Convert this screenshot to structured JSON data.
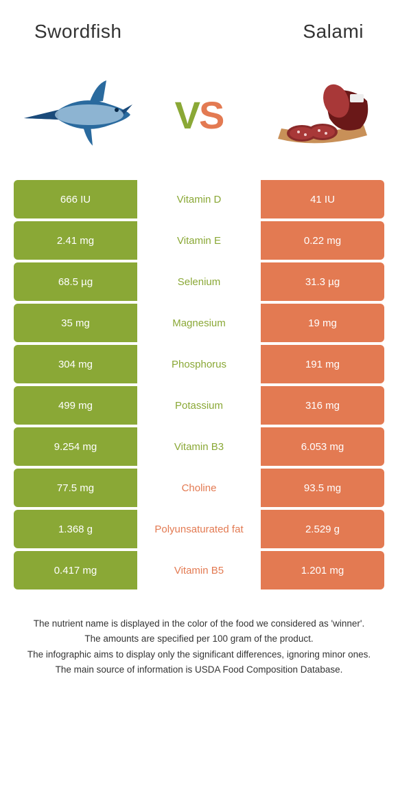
{
  "header": {
    "left_title": "Swordfish",
    "right_title": "Salami"
  },
  "vs": {
    "v": "V",
    "s": "S"
  },
  "colors": {
    "left_food": "#8aa836",
    "right_food": "#e37a52",
    "text_dark": "#333333"
  },
  "rows": [
    {
      "nutrient": "Vitamin D",
      "left": "666 IU",
      "right": "41 IU",
      "winner": "left"
    },
    {
      "nutrient": "Vitamin E",
      "left": "2.41 mg",
      "right": "0.22 mg",
      "winner": "left"
    },
    {
      "nutrient": "Selenium",
      "left": "68.5 µg",
      "right": "31.3 µg",
      "winner": "left"
    },
    {
      "nutrient": "Magnesium",
      "left": "35 mg",
      "right": "19 mg",
      "winner": "left"
    },
    {
      "nutrient": "Phosphorus",
      "left": "304 mg",
      "right": "191 mg",
      "winner": "left"
    },
    {
      "nutrient": "Potassium",
      "left": "499 mg",
      "right": "316 mg",
      "winner": "left"
    },
    {
      "nutrient": "Vitamin B3",
      "left": "9.254 mg",
      "right": "6.053 mg",
      "winner": "left"
    },
    {
      "nutrient": "Choline",
      "left": "77.5 mg",
      "right": "93.5 mg",
      "winner": "right"
    },
    {
      "nutrient": "Polyunsaturated fat",
      "left": "1.368 g",
      "right": "2.529 g",
      "winner": "right"
    },
    {
      "nutrient": "Vitamin B5",
      "left": "0.417 mg",
      "right": "1.201 mg",
      "winner": "right"
    }
  ],
  "footer": {
    "line1": "The nutrient name is displayed in the color of the food we considered as 'winner'.",
    "line2": "The amounts are specified per 100 gram of the product.",
    "line3": "The infographic aims to display only the significant differences, ignoring minor ones.",
    "line4": "The main source of information is USDA Food Composition Database."
  }
}
